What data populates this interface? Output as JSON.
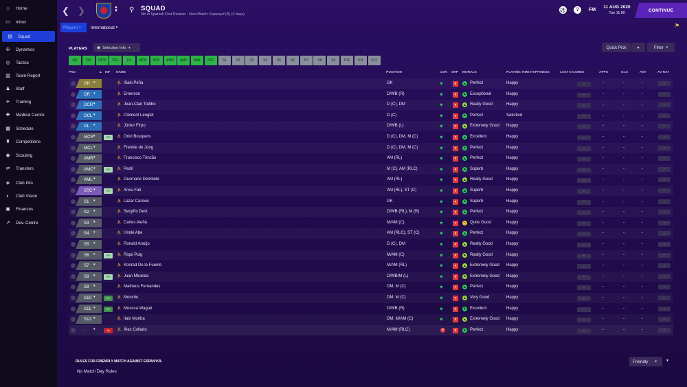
{
  "sidebar": {
    "items": [
      {
        "label": "Home",
        "icon": "home-icon",
        "glyph": "⌂"
      },
      {
        "label": "Inbox",
        "icon": "inbox-icon",
        "glyph": "▭"
      },
      {
        "label": "Squad",
        "icon": "squad-icon",
        "glyph": "▤"
      },
      {
        "label": "Dynamics",
        "icon": "dynamics-icon",
        "glyph": "✣"
      },
      {
        "label": "Tactics",
        "icon": "tactics-icon",
        "glyph": "◎"
      },
      {
        "label": "Team Report",
        "icon": "report-icon",
        "glyph": "▥"
      },
      {
        "label": "Staff",
        "icon": "staff-icon",
        "glyph": "♟"
      },
      {
        "label": "Training",
        "icon": "training-icon",
        "glyph": "✈"
      },
      {
        "label": "Medical Centre",
        "icon": "medical-icon",
        "glyph": "✚"
      },
      {
        "label": "Schedule",
        "icon": "schedule-icon",
        "glyph": "▦"
      },
      {
        "label": "Competitions",
        "icon": "competitions-icon",
        "glyph": "♜"
      },
      {
        "label": "Scouting",
        "icon": "scouting-icon",
        "glyph": "◉"
      },
      {
        "label": "Transfers",
        "icon": "transfers-icon",
        "glyph": "⇄"
      },
      {
        "label": "Club Info",
        "icon": "club-info-icon",
        "glyph": "◈"
      },
      {
        "label": "Club Vision",
        "icon": "club-vision-icon",
        "glyph": "◐"
      },
      {
        "label": "Finances",
        "icon": "finances-icon",
        "glyph": "▣"
      },
      {
        "label": "Dev. Centre",
        "icon": "dev-centre-icon",
        "glyph": "↗"
      }
    ]
  },
  "header": {
    "title": "SQUAD",
    "subtitle": "5th in Spanish First Division - Next Match: Espanyol (A) (4 days)",
    "fm": "FM",
    "date": "11 AUG 2020",
    "time": "Tue 11:00",
    "continue": "CONTINUE"
  },
  "tabs": [
    {
      "label": "Players",
      "active": true
    },
    {
      "label": "International",
      "active": false
    }
  ],
  "players_heading": "PLAYERS",
  "selection_info": "Selection Info",
  "quick_pick": "Quick Pick",
  "filter": "Filter",
  "position_chips": [
    {
      "label": "GK",
      "type": "start"
    },
    {
      "label": "DR",
      "type": "start"
    },
    {
      "label": "DCR",
      "type": "start"
    },
    {
      "label": "DCL",
      "type": "start"
    },
    {
      "label": "DL",
      "type": "start"
    },
    {
      "label": "MCR",
      "type": "start"
    },
    {
      "label": "MCL",
      "type": "start"
    },
    {
      "label": "AMR",
      "type": "start"
    },
    {
      "label": "AMC",
      "type": "start"
    },
    {
      "label": "AML",
      "type": "start"
    },
    {
      "label": "STC",
      "type": "start"
    },
    {
      "label": "S1",
      "type": "sub"
    },
    {
      "label": "S2",
      "type": "sub"
    },
    {
      "label": "S3",
      "type": "sub"
    },
    {
      "label": "S4",
      "type": "sub"
    },
    {
      "label": "S5",
      "type": "sub"
    },
    {
      "label": "S6",
      "type": "sub"
    },
    {
      "label": "S7",
      "type": "sub"
    },
    {
      "label": "S8",
      "type": "sub"
    },
    {
      "label": "S9",
      "type": "sub"
    },
    {
      "label": "S10",
      "type": "sub"
    },
    {
      "label": "S11",
      "type": "sub"
    },
    {
      "label": "S12",
      "type": "sub"
    }
  ],
  "columns": {
    "pkd": "PKD",
    "inf": "INF",
    "name": "NAME",
    "position": "POSITION",
    "con": "CON",
    "shp": "SHP",
    "morale": "MORALE",
    "playing_time": "PLAYING TIME HAPPINESS",
    "last5": "LAST 5 GAMES",
    "apps": "APPS",
    "gls": "GLS",
    "ast": "AST",
    "avrat": "AV RAT"
  },
  "players": [
    {
      "pkd": "GK",
      "inf": "",
      "name": "Iñaki Peña",
      "position": "GK",
      "con": "heart",
      "morale": "Perfect",
      "happiness": "Happy",
      "last5": "-",
      "apps": "-",
      "gls": "-",
      "ast": "-",
      "avrat": "-"
    },
    {
      "pkd": "DR",
      "inf": "",
      "name": "Emerson",
      "position": "D/WB (R)",
      "con": "heart",
      "morale": "Exceptional",
      "happiness": "Happy",
      "last5": "-",
      "apps": "-",
      "gls": "-",
      "ast": "-",
      "avrat": "-"
    },
    {
      "pkd": "DCR",
      "inf": "",
      "name": "Jean-Clair Todibo",
      "position": "D (C), DM",
      "con": "heart",
      "morale": "Really Good",
      "happiness": "Happy",
      "last5": "-",
      "apps": "-",
      "gls": "-",
      "ast": "-",
      "avrat": "-"
    },
    {
      "pkd": "DCL",
      "inf": "",
      "name": "Clément Lenglet",
      "position": "D (C)",
      "con": "heart",
      "morale": "Perfect",
      "happiness": "Satisfied",
      "last5": "-",
      "apps": "-",
      "gls": "-",
      "ast": "-",
      "avrat": "-"
    },
    {
      "pkd": "DL",
      "inf": "",
      "name": "Júnior Firpo",
      "position": "D/WB (L)",
      "con": "heart",
      "morale": "Extremely Good",
      "happiness": "Happy",
      "last5": "-",
      "apps": "-",
      "gls": "-",
      "ast": "-",
      "avrat": "-"
    },
    {
      "pkd": "MCR",
      "inf": "IPR",
      "name": "Oriol Busquets",
      "position": "D (C), DM, M (C)",
      "con": "heart",
      "morale": "Excellent",
      "happiness": "Happy",
      "last5": "-",
      "apps": "-",
      "gls": "-",
      "ast": "-",
      "avrat": "-"
    },
    {
      "pkd": "MCL",
      "inf": "",
      "name": "Frenkie de Jong",
      "position": "D (C), DM, M (C)",
      "con": "heart",
      "morale": "Perfect",
      "happiness": "Happy",
      "last5": "-",
      "apps": "-",
      "gls": "-",
      "ast": "-",
      "avrat": "-"
    },
    {
      "pkd": "AMR",
      "inf": "",
      "name": "Francisco Trincão",
      "position": "AM (RL)",
      "con": "heart",
      "morale": "Perfect",
      "happiness": "Happy",
      "last5": "-",
      "apps": "-",
      "gls": "-",
      "ast": "-",
      "avrat": "-"
    },
    {
      "pkd": "AMC",
      "inf": "IPR",
      "name": "Pedri",
      "position": "M (C), AM (RLC)",
      "con": "heart",
      "morale": "Superb",
      "happiness": "Happy",
      "last5": "-",
      "apps": "-",
      "gls": "-",
      "ast": "-",
      "avrat": "-"
    },
    {
      "pkd": "AML",
      "inf": "",
      "name": "Ousmane Dembélé",
      "position": "AM (RL)",
      "con": "heart",
      "morale": "Really Good",
      "happiness": "Happy",
      "last5": "-",
      "apps": "-",
      "gls": "-",
      "ast": "-",
      "avrat": "-"
    },
    {
      "pkd": "STC",
      "inf": "IPR",
      "name": "Ansu Fati",
      "position": "AM (RL), ST (C)",
      "con": "heart",
      "morale": "Superb",
      "happiness": "Happy",
      "last5": "-",
      "apps": "-",
      "gls": "-",
      "ast": "-",
      "avrat": "-"
    },
    {
      "pkd": "S1",
      "inf": "",
      "name": "Lazar Carevic",
      "position": "GK",
      "con": "heart",
      "morale": "Superb",
      "happiness": "Happy",
      "last5": "-",
      "apps": "-",
      "gls": "-",
      "ast": "-",
      "avrat": "-"
    },
    {
      "pkd": "S2",
      "inf": "",
      "name": "Sergiño Dest",
      "position": "D/WB (RL), M (R)",
      "con": "heart",
      "morale": "Perfect",
      "happiness": "Happy",
      "last5": "-",
      "apps": "-",
      "gls": "-",
      "ast": "-",
      "avrat": "-"
    },
    {
      "pkd": "S3",
      "inf": "",
      "name": "Carles Aleñá",
      "position": "M/AM (C)",
      "con": "heart",
      "morale": "Quite Good",
      "happiness": "Happy",
      "last5": "-",
      "apps": "-",
      "gls": "-",
      "ast": "-",
      "avrat": "-"
    },
    {
      "pkd": "S4",
      "inf": "",
      "name": "Hiroki Abe",
      "position": "AM (RLC), ST (C)",
      "con": "heart",
      "morale": "Perfect",
      "happiness": "Happy",
      "last5": "-",
      "apps": "-",
      "gls": "-",
      "ast": "-",
      "avrat": "-"
    },
    {
      "pkd": "S5",
      "inf": "",
      "name": "Ronald Araújo",
      "position": "D (C), DM",
      "con": "heart",
      "morale": "Really Good",
      "happiness": "Happy",
      "last5": "-",
      "apps": "-",
      "gls": "-",
      "ast": "-",
      "avrat": "-"
    },
    {
      "pkd": "S6",
      "inf": "IPR",
      "name": "Riqui Puig",
      "position": "M/AM (C)",
      "con": "heart",
      "morale": "Really Good",
      "happiness": "Happy",
      "last5": "-",
      "apps": "-",
      "gls": "-",
      "ast": "-",
      "avrat": "-"
    },
    {
      "pkd": "S7",
      "inf": "",
      "name": "Konrad De la Fuente",
      "position": "M/AM (RL)",
      "con": "heart",
      "morale": "Extremely Good",
      "happiness": "Happy",
      "last5": "-",
      "apps": "-",
      "gls": "-",
      "ast": "-",
      "avrat": "-"
    },
    {
      "pkd": "S8",
      "inf": "IPR",
      "name": "Juan Miranda",
      "position": "D/WB/M (L)",
      "con": "heart",
      "morale": "Extremely Good",
      "happiness": "Happy",
      "last5": "-",
      "apps": "-",
      "gls": "-",
      "ast": "-",
      "avrat": "-"
    },
    {
      "pkd": "S9",
      "inf": "",
      "name": "Matheus Fernandes",
      "position": "DM, M (C)",
      "con": "heart",
      "morale": "Perfect",
      "happiness": "Happy",
      "last5": "-",
      "apps": "-",
      "gls": "-",
      "ast": "-",
      "avrat": "-"
    },
    {
      "pkd": "S10",
      "inf": "BHI",
      "name": "Monchu",
      "position": "DM, M (C)",
      "con": "heart",
      "morale": "Very Good",
      "happiness": "Happy",
      "last5": "-",
      "apps": "-",
      "gls": "-",
      "ast": "-",
      "avrat": "-"
    },
    {
      "pkd": "S11",
      "inf": "BHI",
      "name": "Moussa Wagué",
      "position": "D/WB (R)",
      "con": "heart",
      "morale": "Excellent",
      "happiness": "Happy",
      "last5": "-",
      "apps": "-",
      "gls": "-",
      "ast": "-",
      "avrat": "-"
    },
    {
      "pkd": "S12",
      "inf": "",
      "name": "Ilaix Moriba",
      "position": "DM, M/AM (C)",
      "con": "heart",
      "morale": "Extremely Good",
      "happiness": "Happy",
      "last5": "-",
      "apps": "-",
      "gls": "-",
      "ast": "-",
      "avrat": "-"
    },
    {
      "pkd": "-",
      "inf": "Inj",
      "name": "Àlex Collado",
      "position": "M/AM (RLC)",
      "con": "x",
      "morale": "Perfect",
      "happiness": "Happy",
      "last5": "-",
      "apps": "-",
      "gls": "-",
      "ast": "-",
      "avrat": "-"
    }
  ],
  "rules": {
    "title": "RULES FOR FRIENDLY MATCH AGAINST ESPANYOL",
    "text": "No Match Day Rules",
    "dropdown": "Friendly"
  },
  "colors": {
    "accent": "#1d3fd8",
    "start_chip": "#2db347",
    "sub_chip": "#8a8f9c",
    "gk_flag": "#8b7f3b",
    "def_flag": "#2c6fb8",
    "mid_flag": "#555a66",
    "att_flag": "#7a5bb5",
    "sub_flag": "#555a66",
    "continue": "#5b24b8"
  }
}
